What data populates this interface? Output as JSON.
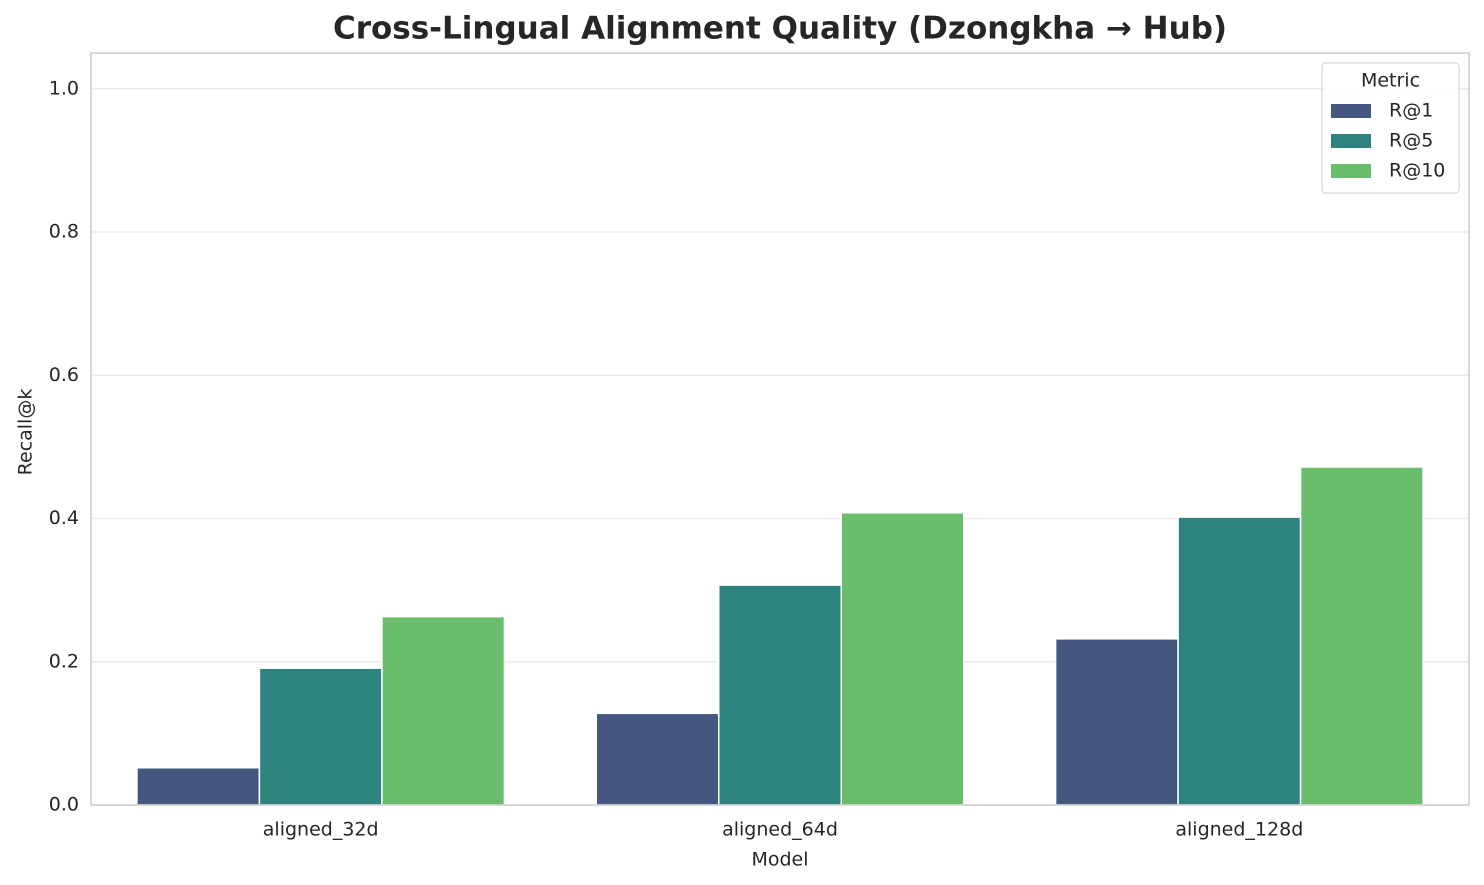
{
  "chart_data": {
    "type": "bar",
    "title": "Cross-Lingual Alignment Quality (Dzongkha → Hub)",
    "xlabel": "Model",
    "ylabel": "Recall@k",
    "categories": [
      "aligned_32d",
      "aligned_64d",
      "aligned_128d"
    ],
    "series": [
      {
        "name": "R@1",
        "color": "#455681",
        "values": [
          0.052,
          0.128,
          0.232
        ]
      },
      {
        "name": "R@5",
        "color": "#2d837e",
        "values": [
          0.191,
          0.307,
          0.402
        ]
      },
      {
        "name": "R@10",
        "color": "#6abd6b",
        "values": [
          0.263,
          0.408,
          0.472
        ]
      }
    ],
    "legend_title": "Metric",
    "legend": "upper right",
    "ylim": [
      0,
      1.05
    ],
    "yticks": [
      {
        "value": 0,
        "label": "0.0"
      },
      0.2,
      0.4,
      0.6,
      0.8,
      {
        "value": 1,
        "label": "1.0"
      }
    ],
    "grid": true
  }
}
